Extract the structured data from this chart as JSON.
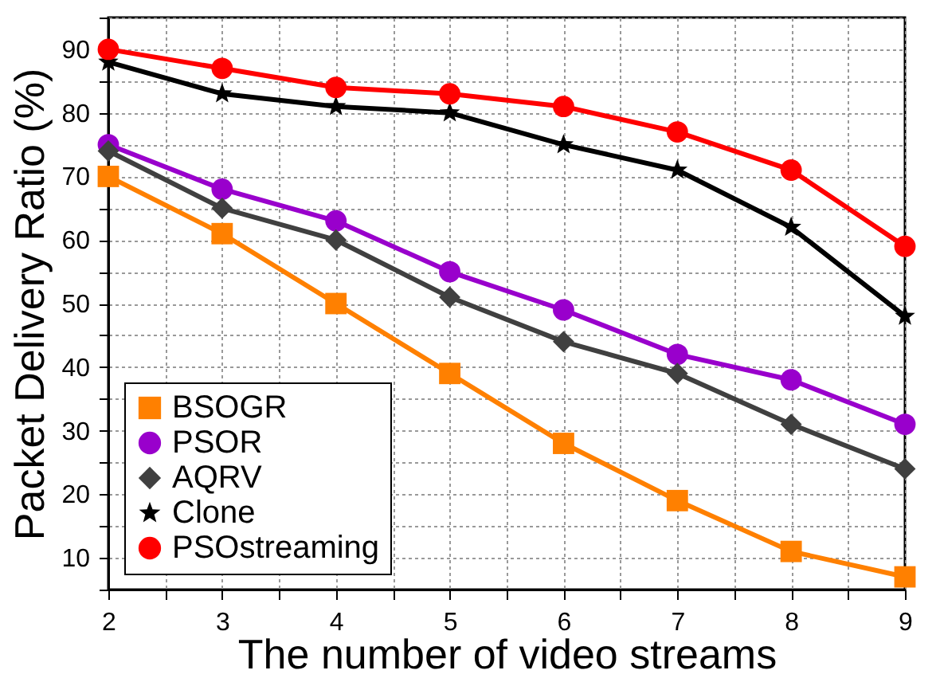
{
  "chart_data": {
    "type": "line",
    "xlabel": "The number of video streams",
    "ylabel": "Packet Delivery Ratio (%)",
    "x": [
      2,
      3,
      4,
      5,
      6,
      7,
      8,
      9
    ],
    "xlim": [
      2,
      9
    ],
    "xticks": [
      2,
      {
        "value": 2.5,
        "label": null
      },
      3,
      {
        "value": 3.5,
        "label": null
      },
      4,
      {
        "value": 4.5,
        "label": null
      },
      5,
      {
        "value": 5.5,
        "label": null
      },
      6,
      {
        "value": 6.5,
        "label": null
      },
      7,
      {
        "value": 7.5,
        "label": null
      },
      8,
      {
        "value": 8.5,
        "label": null
      },
      9
    ],
    "ylim": [
      5,
      95
    ],
    "yticks": [
      {
        "value": 5,
        "label": null
      },
      10,
      {
        "value": 15,
        "label": null
      },
      20,
      {
        "value": 25,
        "label": null
      },
      30,
      {
        "value": 35,
        "label": null
      },
      40,
      {
        "value": 45,
        "label": null
      },
      50,
      {
        "value": 55,
        "label": null
      },
      60,
      {
        "value": 65,
        "label": null
      },
      70,
      {
        "value": 75,
        "label": null
      },
      80,
      {
        "value": 85,
        "label": null
      },
      90,
      {
        "value": 95,
        "label": null
      }
    ],
    "grid": true,
    "legend": "bottom left",
    "line_style": "solid",
    "series": [
      {
        "name": "BSOGR",
        "color": "#ff8000",
        "marker": "square",
        "values": [
          70,
          61,
          50,
          39,
          28,
          19,
          11,
          7
        ]
      },
      {
        "name": "PSOR",
        "color": "#9900cc",
        "marker": "circle",
        "values": [
          75,
          68,
          63,
          55,
          49,
          42,
          38,
          31
        ]
      },
      {
        "name": "AQRV",
        "color": "#404040",
        "marker": "diamond",
        "values": [
          74,
          65,
          60,
          51,
          44,
          39,
          31,
          24
        ]
      },
      {
        "name": "Clone",
        "color": "#000000",
        "marker": "star",
        "values": [
          88,
          83,
          81,
          80,
          75,
          71,
          62,
          48
        ]
      },
      {
        "name": "PSOstreaming",
        "color": "#ff0000",
        "marker": "circle",
        "values": [
          90,
          87,
          84,
          83,
          81,
          77,
          71,
          59
        ]
      }
    ]
  }
}
